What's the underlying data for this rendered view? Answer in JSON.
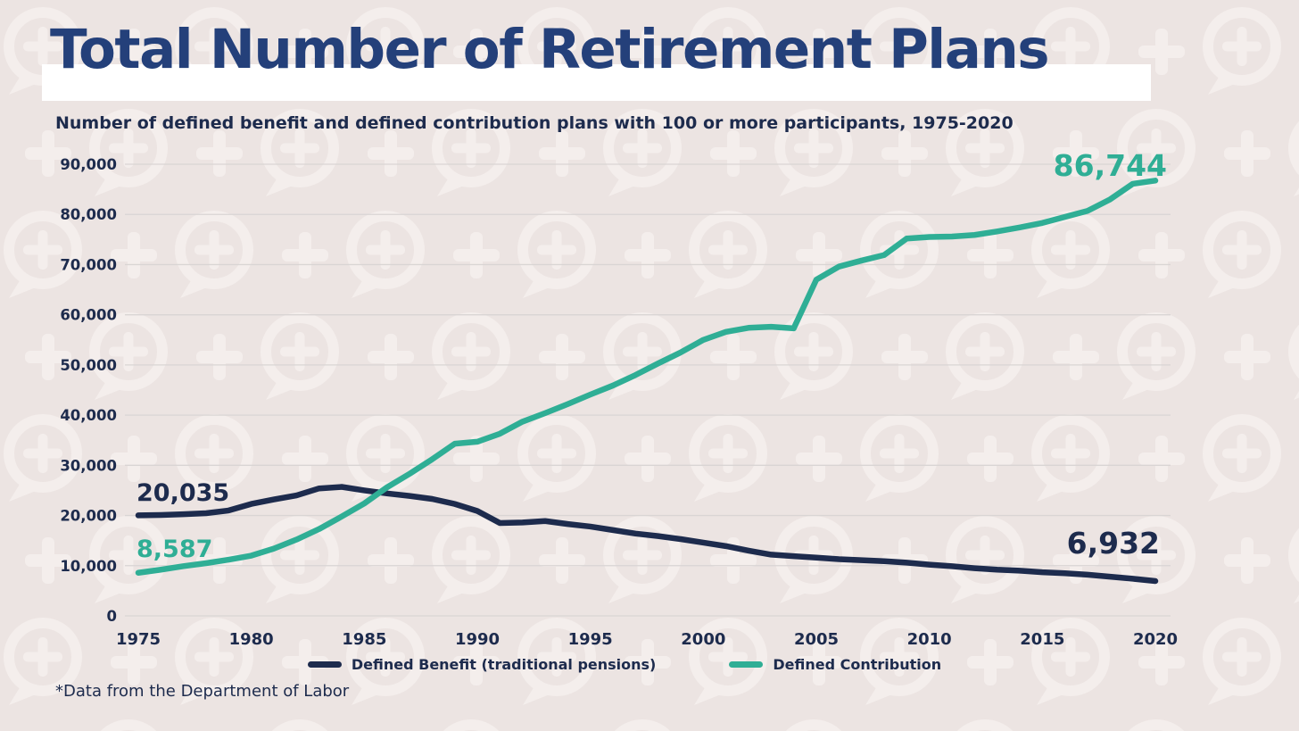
{
  "title": "Total Number of Retirement Plans",
  "subtitle": "Number of defined benefit and defined contribution plans with 100 or more participants, 1975-2020",
  "footnote": "*Data from the Department of Labor",
  "colors": {
    "background": "#ece4e2",
    "watermark": "#f4eeec",
    "navy": "#1d2b4d",
    "teal": "#2fae95",
    "title": "#24407a",
    "gridline": "#d9d5d4",
    "band": "#ffffff"
  },
  "annotations": {
    "db_start": "20,035",
    "dc_start": "8,587",
    "dc_end": "86,744",
    "db_end": "6,932"
  },
  "legend": [
    {
      "label": "Defined Benefit (traditional pensions)",
      "color": "#1d2b4d"
    },
    {
      "label": "Defined Contribution",
      "color": "#2fae95"
    }
  ],
  "chart_data": {
    "type": "line",
    "title": "Total Number of Retirement Plans",
    "subtitle": "Number of defined benefit and defined contribution plans with 100 or more participants, 1975-2020",
    "source": "*Data from the Department of Labor",
    "x": [
      1975,
      1976,
      1977,
      1978,
      1979,
      1980,
      1981,
      1982,
      1983,
      1984,
      1985,
      1986,
      1987,
      1988,
      1989,
      1990,
      1991,
      1992,
      1993,
      1994,
      1995,
      1996,
      1997,
      1998,
      1999,
      2000,
      2001,
      2002,
      2003,
      2004,
      2005,
      2006,
      2007,
      2008,
      2009,
      2010,
      2011,
      2012,
      2013,
      2014,
      2015,
      2016,
      2017,
      2018,
      2019,
      2020
    ],
    "series": [
      {
        "name": "Defined Benefit (traditional pensions)",
        "color": "#1d2b4d",
        "values": [
          20035,
          20100,
          20250,
          20450,
          21000,
          22300,
          23200,
          24000,
          25400,
          25700,
          25000,
          24400,
          23900,
          23300,
          22300,
          20900,
          18500,
          18600,
          18900,
          18300,
          17800,
          17100,
          16400,
          15900,
          15300,
          14600,
          13900,
          13000,
          12200,
          11900,
          11600,
          11300,
          11100,
          10900,
          10600,
          10200,
          9900,
          9500,
          9200,
          9000,
          8700,
          8500,
          8200,
          7800,
          7400,
          6932
        ]
      },
      {
        "name": "Defined Contribution",
        "color": "#2fae95",
        "values": [
          8587,
          9200,
          9900,
          10500,
          11200,
          12000,
          13400,
          15200,
          17300,
          19800,
          22400,
          25600,
          28300,
          31200,
          34300,
          34700,
          36300,
          38700,
          40400,
          42200,
          44100,
          45900,
          48000,
          50300,
          52500,
          55000,
          56600,
          57400,
          57600,
          57300,
          67000,
          69600,
          70800,
          71900,
          75200,
          75500,
          75600,
          75900,
          76600,
          77400,
          78300,
          79500,
          80700,
          83000,
          86100,
          86744
        ]
      }
    ],
    "xlim": [
      1975,
      2020
    ],
    "ylim": [
      0,
      90000
    ],
    "xticks": [
      1975,
      1980,
      1985,
      1990,
      1995,
      2000,
      2005,
      2010,
      2015,
      2020
    ],
    "yticks": [
      0,
      10000,
      20000,
      30000,
      40000,
      50000,
      60000,
      70000,
      80000,
      90000
    ],
    "ytick_labels": [
      "0",
      "10,000",
      "20,000",
      "30,000",
      "40,000",
      "50,000",
      "60,000",
      "70,000",
      "80,000",
      "90,000"
    ],
    "grid": "horizontal",
    "legend_position": "bottom",
    "point_labels": {
      "defined_benefit_1975": 20035,
      "defined_contribution_1975": 8587,
      "defined_benefit_2020": 6932,
      "defined_contribution_2020": 86744
    }
  }
}
